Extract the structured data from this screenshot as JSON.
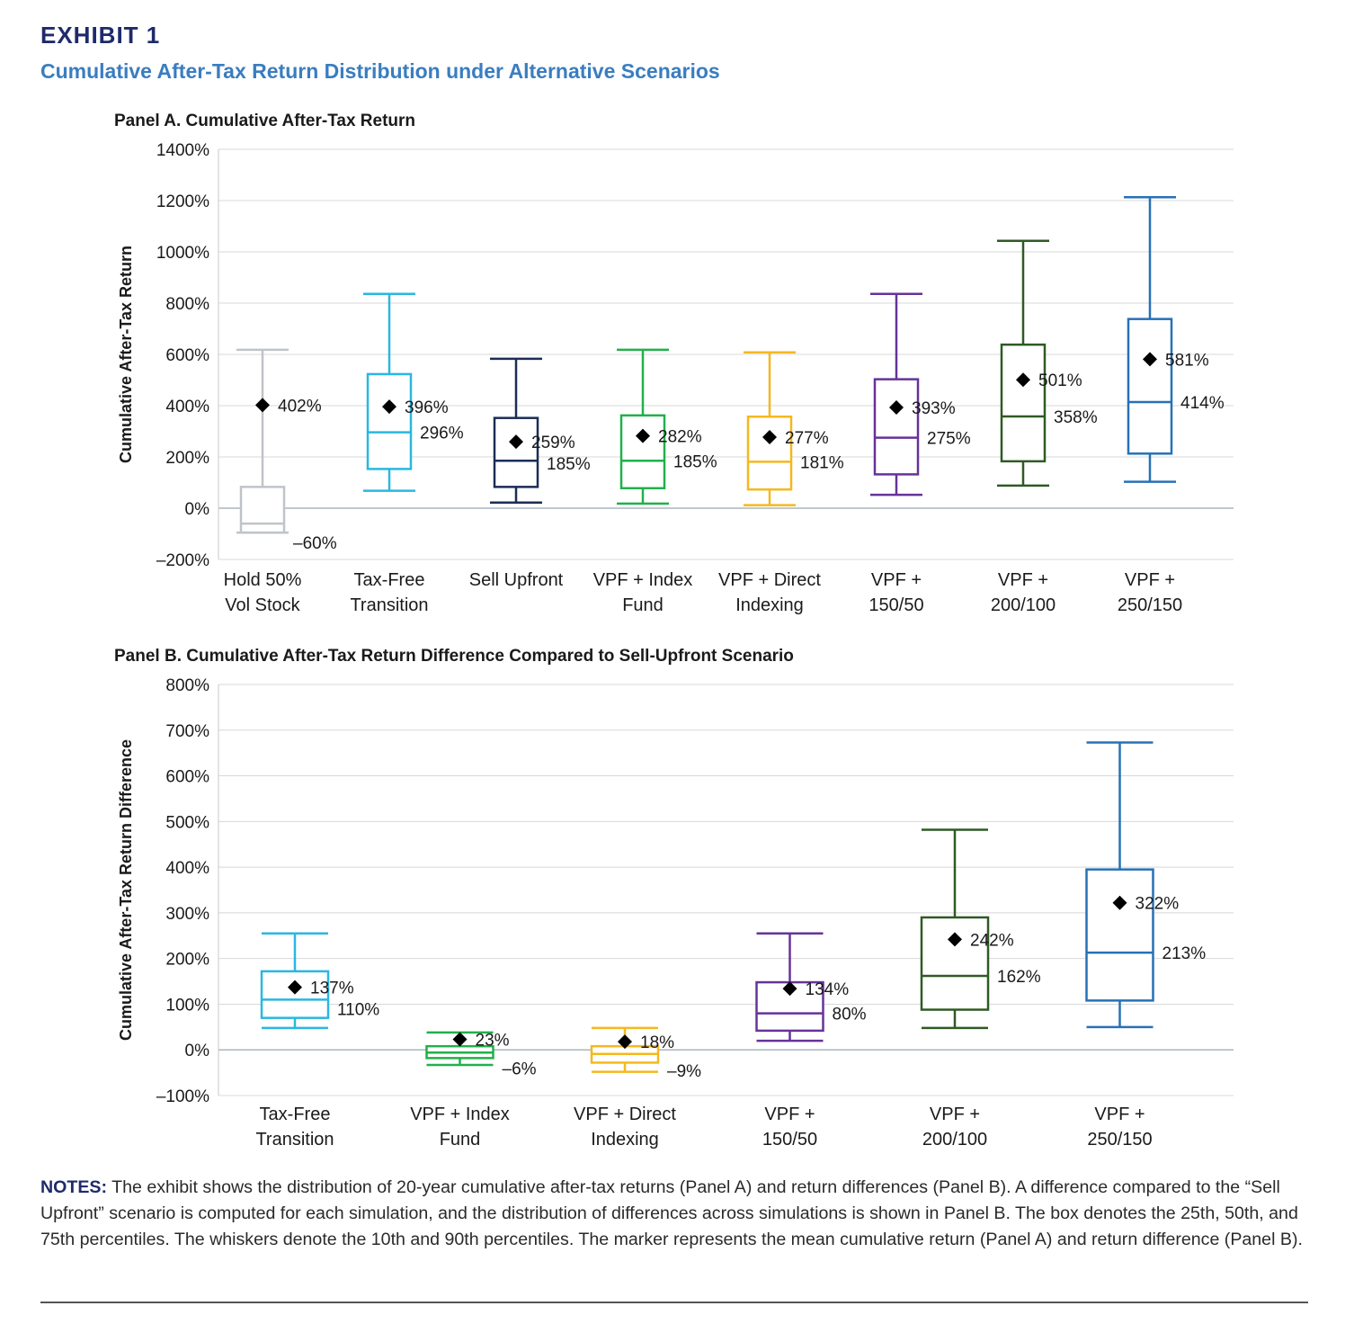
{
  "header": {
    "exhibit": "EXHIBIT 1",
    "subtitle": "Cumulative After-Tax Return Distribution under Alternative Scenarios"
  },
  "notes": {
    "label": "NOTES:",
    "text": " The exhibit shows the distribution of 20-year cumulative after-tax returns (Panel A) and return differences (Panel B). A difference compared to the “Sell Upfront” scenario is computed for each simulation, and the distribution of differences across simulations is shown in Panel B. The box denotes the 25th, 50th, and 75th percentiles. The whiskers denote the 10th and 90th percentiles. The marker represents the mean cumulative return (Panel A) and return difference (Panel B)."
  },
  "chart_data": [
    {
      "type": "box",
      "title": "Panel A. Cumulative After-Tax Return",
      "ylabel": "Cumulative After-Tax Return",
      "ylim": [
        -200,
        1400
      ],
      "yticks": [
        -200,
        0,
        200,
        400,
        600,
        800,
        1000,
        1200,
        1400
      ],
      "ytick_labels": [
        "–200%",
        "0%",
        "200%",
        "400%",
        "600%",
        "800%",
        "1000%",
        "1200%",
        "1400%"
      ],
      "grid": true,
      "series": [
        {
          "category": [
            "Hold 50%",
            "Vol Stock"
          ],
          "color": "#c0c4c8",
          "p10": -95,
          "p25": -95,
          "p50": -60,
          "p75": 83,
          "p90": 618,
          "mean": 402,
          "mean_label": "402%",
          "median_label": "–60%"
        },
        {
          "category": [
            "Tax-Free",
            "Transition"
          ],
          "color": "#29b7e0",
          "p10": 68,
          "p25": 153,
          "p50": 296,
          "p75": 523,
          "p90": 836,
          "mean": 396,
          "mean_label": "396%",
          "median_label": "296%"
        },
        {
          "category": [
            "Sell Upfront"
          ],
          "color": "#1b2d55",
          "p10": 22,
          "p25": 83,
          "p50": 185,
          "p75": 352,
          "p90": 583,
          "mean": 259,
          "mean_label": "259%",
          "median_label": "185%"
        },
        {
          "category": [
            "VPF + Index",
            "Fund"
          ],
          "color": "#22b04b",
          "p10": 18,
          "p25": 78,
          "p50": 185,
          "p75": 362,
          "p90": 618,
          "mean": 282,
          "mean_label": "282%",
          "median_label": "185%"
        },
        {
          "category": [
            "VPF + Direct",
            "Indexing"
          ],
          "color": "#f5b81e",
          "p10": 12,
          "p25": 73,
          "p50": 181,
          "p75": 357,
          "p90": 608,
          "mean": 277,
          "mean_label": "277%",
          "median_label": "181%"
        },
        {
          "category": [
            "VPF +",
            "150/50"
          ],
          "color": "#66339a",
          "p10": 52,
          "p25": 132,
          "p50": 275,
          "p75": 503,
          "p90": 836,
          "mean": 393,
          "mean_label": "393%",
          "median_label": "275%"
        },
        {
          "category": [
            "VPF +",
            "200/100"
          ],
          "color": "#2f5a24",
          "p10": 88,
          "p25": 183,
          "p50": 358,
          "p75": 638,
          "p90": 1043,
          "mean": 501,
          "mean_label": "501%",
          "median_label": "358%"
        },
        {
          "category": [
            "VPF +",
            "250/150"
          ],
          "color": "#2771b5",
          "p10": 103,
          "p25": 213,
          "p50": 414,
          "p75": 738,
          "p90": 1213,
          "mean": 581,
          "mean_label": "581%",
          "median_label": "414%"
        }
      ]
    },
    {
      "type": "box",
      "title": "Panel B. Cumulative After-Tax Return Difference Compared to Sell-Upfront Scenario",
      "ylabel": "Cumulative After-Tax Return Difference",
      "ylim": [
        -100,
        800
      ],
      "yticks": [
        -100,
        0,
        100,
        200,
        300,
        400,
        500,
        600,
        700,
        800
      ],
      "ytick_labels": [
        "–100%",
        "0%",
        "100%",
        "200%",
        "300%",
        "400%",
        "500%",
        "600%",
        "700%",
        "800%"
      ],
      "grid": true,
      "series": [
        {
          "category": [
            "Tax-Free",
            "Transition"
          ],
          "color": "#29b7e0",
          "p10": 48,
          "p25": 70,
          "p50": 110,
          "p75": 172,
          "p90": 255,
          "mean": 137,
          "mean_label": "137%",
          "median_label": "110%"
        },
        {
          "category": [
            "VPF + Index",
            "Fund"
          ],
          "color": "#22b04b",
          "p10": -33,
          "p25": -18,
          "p50": -6,
          "p75": 8,
          "p90": 38,
          "mean": 23,
          "mean_label": "23%",
          "median_label": "–6%"
        },
        {
          "category": [
            "VPF + Direct",
            "Indexing"
          ],
          "color": "#f5b81e",
          "p10": -48,
          "p25": -28,
          "p50": -9,
          "p75": 8,
          "p90": 48,
          "mean": 18,
          "mean_label": "18%",
          "median_label": "–9%"
        },
        {
          "category": [
            "VPF +",
            "150/50"
          ],
          "color": "#66339a",
          "p10": 20,
          "p25": 42,
          "p50": 80,
          "p75": 148,
          "p90": 255,
          "mean": 134,
          "mean_label": "134%",
          "median_label": "80%"
        },
        {
          "category": [
            "VPF +",
            "200/100"
          ],
          "color": "#2f5a24",
          "p10": 48,
          "p25": 88,
          "p50": 162,
          "p75": 290,
          "p90": 482,
          "mean": 242,
          "mean_label": "242%",
          "median_label": "162%"
        },
        {
          "category": [
            "VPF +",
            "250/150"
          ],
          "color": "#2771b5",
          "p10": 50,
          "p25": 108,
          "p50": 213,
          "p75": 395,
          "p90": 673,
          "mean": 322,
          "mean_label": "322%",
          "median_label": "213%"
        }
      ]
    }
  ]
}
